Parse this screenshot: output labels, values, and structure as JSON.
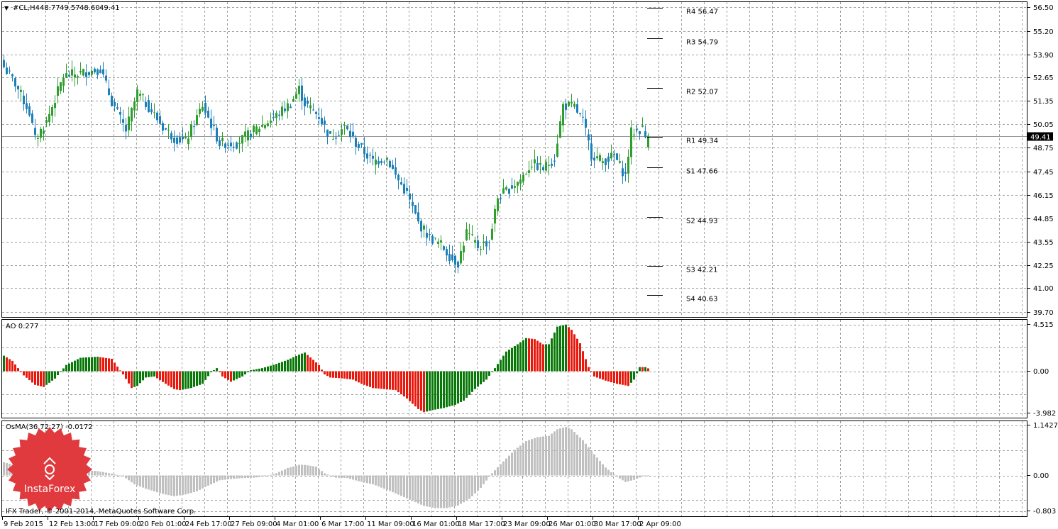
{
  "colors": {
    "background": "#ffffff",
    "grid": "#a0a0a0",
    "frame": "#000000",
    "candle_up": "#2e9e2e",
    "candle_down": "#1d7fb8",
    "ao_up": "#087808",
    "ao_down": "#e8180c",
    "osma": "#c0c0c0",
    "logo": "#e03a3e"
  },
  "header": {
    "marker": "▼",
    "symbol": "#CL,H4",
    "open": "48.77",
    "high": "49.57",
    "low": "48.60",
    "close": "49.41"
  },
  "price_panel": {
    "current_price_label": "49.41",
    "current_price": 49.41,
    "pivots": [
      {
        "label": "R4 56.47",
        "value": 56.47
      },
      {
        "label": "R3 54.79",
        "value": 54.79
      },
      {
        "label": "R2 52.07",
        "value": 52.07
      },
      {
        "label": "R1 49.34",
        "value": 49.34
      },
      {
        "label": "S1 47.66",
        "value": 47.66
      },
      {
        "label": "S2 44.93",
        "value": 44.93
      },
      {
        "label": "S3 42.21",
        "value": 42.21
      },
      {
        "label": "S4 40.63",
        "value": 40.63
      }
    ]
  },
  "ao_panel": {
    "title": "AO 0.277",
    "tick_labels": [
      "4.515",
      "0.00",
      "-3.982"
    ]
  },
  "osma_panel": {
    "title": "OsMA(36,72,27) -0.0172",
    "tick_labels": [
      "1.1427",
      "0.00",
      "-0.803"
    ]
  },
  "footer": {
    "copyright": "IFX Trader, © 2001-2014, MetaQuotes Software Corp."
  },
  "logo": {
    "text": "InstaForex"
  },
  "chart_data": [
    {
      "type": "candlestick",
      "symbol": "#CL",
      "timeframe": "H4",
      "y_ticks": [
        "56.50",
        "55.20",
        "53.90",
        "52.65",
        "51.35",
        "50.05",
        "48.75",
        "47.45",
        "46.15",
        "44.85",
        "43.55",
        "42.25",
        "41.00",
        "39.70"
      ],
      "ylim": [
        39.45,
        56.75
      ],
      "x_tick_labels": [
        "9 Feb 2015",
        "12 Feb 13:00",
        "17 Feb 09:00",
        "20 Feb 01:00",
        "24 Feb 17:00",
        "27 Feb 09:00",
        "4 Mar 01:00",
        "6 Mar 17:00",
        "11 Mar 09:00",
        "16 Mar 01:00",
        "18 Mar 17:00",
        "23 Mar 09:00",
        "26 Mar 01:00",
        "30 Mar 17:00",
        "2 Apr 09:00"
      ],
      "grid": true,
      "close_path_anchors": [
        [
          0,
          53.2
        ],
        [
          4,
          52.3
        ],
        [
          9,
          50.7
        ],
        [
          11,
          49.2
        ],
        [
          15,
          50.2
        ],
        [
          21,
          52.7
        ],
        [
          28,
          52.9
        ],
        [
          34,
          53.1
        ],
        [
          38,
          51.3
        ],
        [
          43,
          49.7
        ],
        [
          47,
          51.8
        ],
        [
          51,
          51.0
        ],
        [
          56,
          49.9
        ],
        [
          60,
          49.3
        ],
        [
          64,
          49.1
        ],
        [
          70,
          51.1
        ],
        [
          76,
          49.0
        ],
        [
          82,
          49.0
        ],
        [
          88,
          49.7
        ],
        [
          95,
          50.4
        ],
        [
          101,
          51.2
        ],
        [
          104,
          52.0
        ],
        [
          106,
          51.2
        ],
        [
          111,
          50.5
        ],
        [
          115,
          49.3
        ],
        [
          120,
          49.9
        ],
        [
          124,
          49.0
        ],
        [
          130,
          48.0
        ],
        [
          135,
          48.2
        ],
        [
          138,
          47.2
        ],
        [
          142,
          46.2
        ],
        [
          146,
          44.6
        ],
        [
          150,
          43.8
        ],
        [
          154,
          43.4
        ],
        [
          158,
          42.6
        ],
        [
          160,
          42.4
        ],
        [
          163,
          44.1
        ],
        [
          167,
          43.3
        ],
        [
          171,
          43.6
        ],
        [
          174,
          46.0
        ],
        [
          178,
          46.5
        ],
        [
          182,
          47.0
        ],
        [
          186,
          47.9
        ],
        [
          190,
          47.6
        ],
        [
          194,
          48.2
        ],
        [
          197,
          51.1
        ],
        [
          201,
          51.0
        ],
        [
          204,
          50.2
        ],
        [
          207,
          48.4
        ],
        [
          211,
          48.0
        ],
        [
          215,
          48.3
        ],
        [
          219,
          47.2
        ],
        [
          221,
          49.6
        ],
        [
          225,
          49.8
        ],
        [
          227,
          48.9
        ]
      ],
      "last_candle": {
        "open": 48.77,
        "high": 49.57,
        "low": 48.6,
        "close": 49.41
      }
    },
    {
      "type": "bar",
      "name": "AO",
      "ylim": [
        -3.982,
        4.515
      ],
      "anchors": [
        [
          0,
          1.5
        ],
        [
          3,
          1.0
        ],
        [
          7,
          -0.4
        ],
        [
          11,
          -1.3
        ],
        [
          14,
          -1.5
        ],
        [
          18,
          -0.7
        ],
        [
          22,
          0.6
        ],
        [
          27,
          1.3
        ],
        [
          33,
          1.4
        ],
        [
          38,
          1.2
        ],
        [
          42,
          -0.3
        ],
        [
          45,
          -1.6
        ],
        [
          47,
          -1.4
        ],
        [
          50,
          -0.6
        ],
        [
          53,
          -0.5
        ],
        [
          57,
          -1.2
        ],
        [
          60,
          -1.7
        ],
        [
          62,
          -1.8
        ],
        [
          66,
          -1.6
        ],
        [
          70,
          -1.2
        ],
        [
          73,
          -0.1
        ],
        [
          75,
          0.3
        ],
        [
          77,
          -0.5
        ],
        [
          80,
          -1.0
        ],
        [
          84,
          -0.5
        ],
        [
          87,
          0.1
        ],
        [
          91,
          0.3
        ],
        [
          96,
          0.7
        ],
        [
          100,
          1.1
        ],
        [
          104,
          1.6
        ],
        [
          106,
          1.8
        ],
        [
          109,
          1.1
        ],
        [
          111,
          0.6
        ],
        [
          113,
          -0.3
        ],
        [
          115,
          -0.6
        ],
        [
          120,
          -0.7
        ],
        [
          123,
          -0.8
        ],
        [
          126,
          -1.2
        ],
        [
          130,
          -1.6
        ],
        [
          134,
          -1.7
        ],
        [
          138,
          -1.8
        ],
        [
          142,
          -2.6
        ],
        [
          146,
          -3.6
        ],
        [
          148,
          -3.9
        ],
        [
          151,
          -3.7
        ],
        [
          155,
          -3.5
        ],
        [
          159,
          -3.2
        ],
        [
          162,
          -2.8
        ],
        [
          166,
          -1.7
        ],
        [
          170,
          -0.8
        ],
        [
          173,
          0.3
        ],
        [
          177,
          1.9
        ],
        [
          181,
          2.6
        ],
        [
          184,
          3.2
        ],
        [
          187,
          3.1
        ],
        [
          190,
          2.6
        ],
        [
          192,
          2.6
        ],
        [
          195,
          4.3
        ],
        [
          198,
          4.5
        ],
        [
          200,
          4.0
        ],
        [
          203,
          2.7
        ],
        [
          206,
          0.4
        ],
        [
          208,
          -0.5
        ],
        [
          212,
          -0.9
        ],
        [
          216,
          -1.2
        ],
        [
          220,
          -1.4
        ],
        [
          222,
          -0.8
        ],
        [
          224,
          0.4
        ],
        [
          226,
          0.4
        ],
        [
          227,
          0.277
        ]
      ]
    },
    {
      "type": "bar",
      "name": "OsMA(36,72,27)",
      "ylim": [
        -0.803,
        1.1427
      ],
      "anchors": [
        [
          0,
          0.3
        ],
        [
          3,
          0.25
        ],
        [
          7,
          0.05
        ],
        [
          11,
          -0.15
        ],
        [
          15,
          -0.05
        ],
        [
          21,
          0.05
        ],
        [
          27,
          0.12
        ],
        [
          33,
          0.1
        ],
        [
          38,
          0.04
        ],
        [
          42,
          -0.02
        ],
        [
          46,
          -0.2
        ],
        [
          50,
          -0.3
        ],
        [
          56,
          -0.42
        ],
        [
          60,
          -0.47
        ],
        [
          64,
          -0.43
        ],
        [
          68,
          -0.36
        ],
        [
          72,
          -0.23
        ],
        [
          76,
          -0.11
        ],
        [
          80,
          -0.08
        ],
        [
          84,
          -0.06
        ],
        [
          88,
          -0.05
        ],
        [
          92,
          -0.02
        ],
        [
          96,
          0.05
        ],
        [
          100,
          0.17
        ],
        [
          104,
          0.24
        ],
        [
          106,
          0.24
        ],
        [
          110,
          0.2
        ],
        [
          113,
          0.05
        ],
        [
          117,
          -0.05
        ],
        [
          121,
          -0.06
        ],
        [
          125,
          -0.13
        ],
        [
          130,
          -0.2
        ],
        [
          136,
          -0.35
        ],
        [
          142,
          -0.52
        ],
        [
          148,
          -0.69
        ],
        [
          152,
          -0.74
        ],
        [
          156,
          -0.74
        ],
        [
          160,
          -0.68
        ],
        [
          164,
          -0.53
        ],
        [
          168,
          -0.28
        ],
        [
          172,
          0.05
        ],
        [
          176,
          0.32
        ],
        [
          180,
          0.58
        ],
        [
          184,
          0.78
        ],
        [
          188,
          0.87
        ],
        [
          192,
          0.9
        ],
        [
          195,
          1.05
        ],
        [
          198,
          1.1
        ],
        [
          200,
          1.05
        ],
        [
          204,
          0.8
        ],
        [
          208,
          0.48
        ],
        [
          212,
          0.18
        ],
        [
          216,
          -0.03
        ],
        [
          219,
          -0.15
        ],
        [
          222,
          -0.1
        ],
        [
          225,
          -0.02
        ],
        [
          227,
          -0.017
        ]
      ]
    }
  ]
}
